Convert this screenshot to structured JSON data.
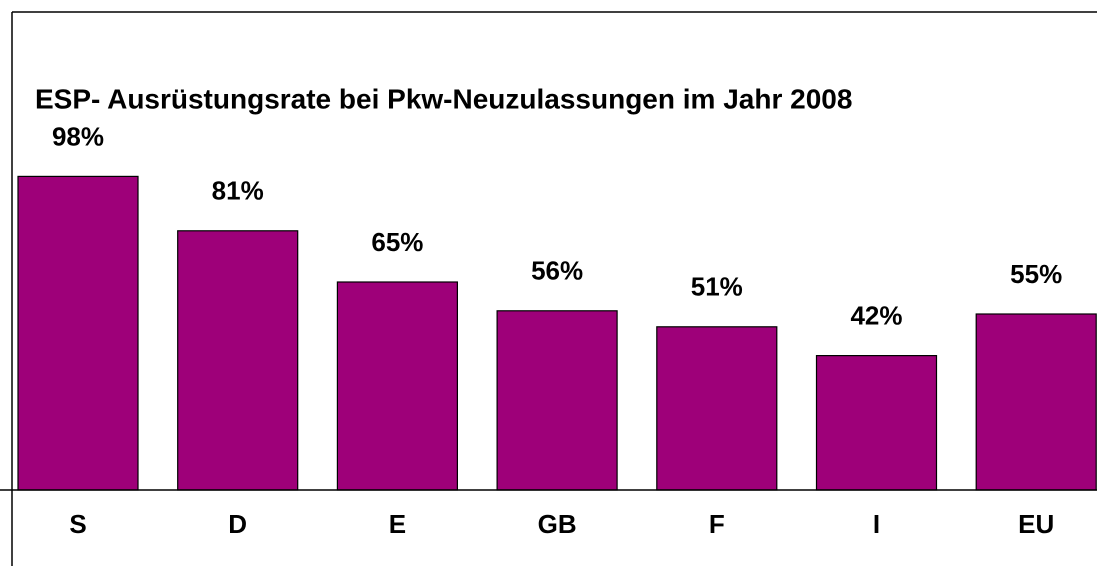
{
  "chart_data": {
    "type": "bar",
    "title": "ESP- Ausrüstungsrate bei Pkw-Neuzulassungen im Jahr 2008",
    "categories": [
      "S",
      "D",
      "E",
      "GB",
      "F",
      "I",
      "EU"
    ],
    "values": [
      98,
      81,
      65,
      56,
      51,
      42,
      55
    ],
    "value_labels": [
      "98%",
      "81%",
      "65%",
      "56%",
      "51%",
      "42%",
      "55%"
    ],
    "color": "#9e0079"
  }
}
